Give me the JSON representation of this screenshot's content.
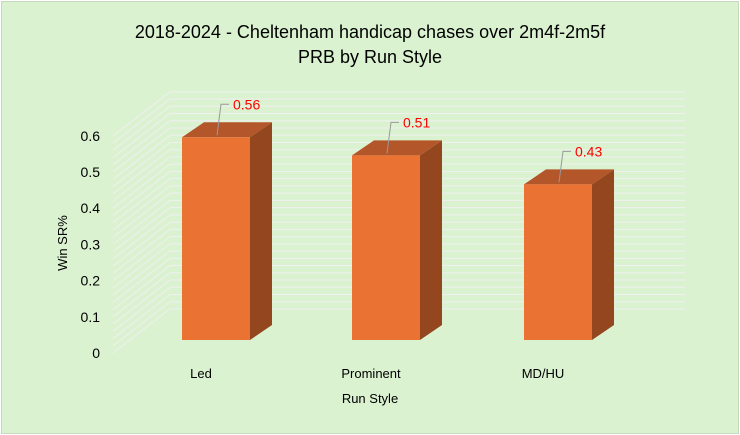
{
  "chart_data": {
    "type": "bar",
    "title": "2018-2024 - Cheltenham handicap chases over 2m4f-2m5f",
    "subtitle": "PRB by Run Style",
    "xlabel": "Run Style",
    "ylabel": "Win SR%",
    "categories": [
      "Led",
      "Prominent",
      "MD/HU"
    ],
    "values": [
      0.56,
      0.51,
      0.43
    ],
    "data_labels": [
      "0.56",
      "0.51",
      "0.43"
    ],
    "ylim": [
      0,
      0.6
    ],
    "yticks": [
      "0",
      "0.1",
      "0.2",
      "0.3",
      "0.4",
      "0.5",
      "0.6"
    ],
    "grid": true,
    "three_d": true,
    "colors": {
      "bar_front": "#ea7233",
      "bar_top": "#b3572a",
      "bar_side": "#94461f",
      "data_label": "#ff0000",
      "background": "#daf2d0",
      "grid": "#f0f0f0"
    }
  }
}
